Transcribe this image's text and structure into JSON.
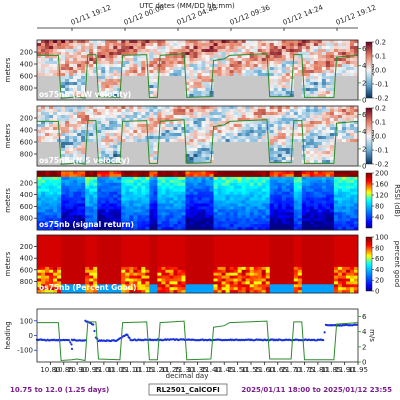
{
  "figure": {
    "top_title": "UTC dates (MM/DD hh:mm)",
    "top_ticks": [
      "01/11 19:12",
      "01/12 00:00",
      "01/12 04:48",
      "01/12 09:36",
      "01/12 14:24",
      "01/12 19:12"
    ],
    "x_ticks": [
      "10.80",
      "10.85",
      "10.90",
      "10.95",
      "11.00",
      "11.05",
      "11.10",
      "11.15",
      "11.20",
      "11.25",
      "11.30",
      "11.35",
      "11.40",
      "11.45",
      "11.50",
      "11.55",
      "11.60",
      "11.65",
      "11.70",
      "11.75",
      "11.80",
      "11.85",
      "11.90",
      "11.95"
    ],
    "x_label": "decimal day",
    "footer": {
      "left": "10.75 to 12.0 (1.25 days)",
      "center": "RL2501_CalCOFI",
      "right": "2025/01/11 18:00 to 2025/01/12 23:55"
    },
    "colors": {
      "footer_purple": "#7a1e8c",
      "speed_green": "#2d8a2d",
      "heading_blue": "#1a33d9",
      "no_data_gray": "#c8c8c8"
    }
  },
  "chart_data": [
    {
      "type": "heatmap",
      "label": "os75nb (E-W velocity)",
      "ylabel": "meters",
      "y_ticks": [
        "200",
        "400",
        "600",
        "800"
      ],
      "ylim": [
        1000,
        0
      ],
      "colorbar": {
        "ticks": [
          "0.2",
          "0.1",
          "0.0",
          "-0.1",
          "-0.2"
        ],
        "range": [
          -0.2,
          0.2
        ],
        "colormap": "RdBu_r"
      },
      "right_axis": {
        "label": "m/s",
        "ticks": [
          "6",
          "4",
          "2",
          "0"
        ],
        "range": [
          0,
          7
        ]
      },
      "overlay": "ship speed"
    },
    {
      "type": "heatmap",
      "label": "os75nb (N-S velocity)",
      "ylabel": "meters",
      "y_ticks": [
        "200",
        "400",
        "600",
        "800"
      ],
      "ylim": [
        1000,
        0
      ],
      "colorbar": {
        "ticks": [
          "0.2",
          "0.1",
          "0.0",
          "-0.1",
          "-0.2"
        ],
        "range": [
          -0.2,
          0.2
        ],
        "colormap": "RdBu_r"
      },
      "right_axis": {
        "label": "m/s",
        "ticks": [
          "6",
          "4",
          "2",
          "0"
        ],
        "range": [
          0,
          7
        ]
      },
      "overlay": "ship speed"
    },
    {
      "type": "heatmap",
      "label": "os75nb (signal return)",
      "ylabel": "meters",
      "y_ticks": [
        "200",
        "400",
        "600",
        "800"
      ],
      "ylim": [
        1000,
        0
      ],
      "colorbar": {
        "label": "RSSI (dB)",
        "ticks": [
          "200",
          "160",
          "120",
          "80",
          "40"
        ],
        "range": [
          0,
          200
        ],
        "colormap": "jet"
      }
    },
    {
      "type": "heatmap",
      "label": "os75nb (Percent Good)",
      "ylabel": "meters",
      "y_ticks": [
        "200",
        "400",
        "600",
        "800"
      ],
      "ylim": [
        1000,
        0
      ],
      "colorbar": {
        "label": "percent good",
        "ticks": [
          "100",
          "80",
          "60",
          "40",
          "20",
          "0"
        ],
        "range": [
          0,
          100
        ],
        "colormap": "jet"
      }
    },
    {
      "type": "line",
      "ylabel": "heading",
      "y_ticks": [
        "100",
        "0",
        "-100"
      ],
      "ylim": [
        -180,
        180
      ],
      "right_axis": {
        "label": "m/s",
        "ticks": [
          "6",
          "4",
          "2",
          "0"
        ],
        "range": [
          0,
          7
        ]
      },
      "series": [
        {
          "name": "heading",
          "marker": "dots",
          "x": [
            10.75,
            10.87,
            10.879,
            10.881,
            10.88,
            10.93,
            10.931,
            10.96,
            10.97,
            10.98,
            11.05,
            11.085,
            11.1,
            11.16,
            11.27,
            11.35,
            11.4,
            11.45,
            11.53,
            11.62,
            11.65,
            11.72,
            11.75,
            11.82,
            11.83,
            11.9,
            11.95
          ],
          "y": [
            -30,
            -33,
            -60,
            -90,
            -30,
            -35,
            100,
            75,
            -15,
            -35,
            -35,
            10,
            -30,
            -30,
            -28,
            -30,
            -30,
            -30,
            -30,
            -30,
            -30,
            -30,
            -30,
            -30,
            70,
            70,
            72
          ]
        },
        {
          "name": "speed",
          "axis": "right",
          "x": [
            10.75,
            10.83,
            10.84,
            10.88,
            10.9,
            10.93,
            10.94,
            10.97,
            10.98,
            11.06,
            11.07,
            11.16,
            11.17,
            11.2,
            11.21,
            11.3,
            11.31,
            11.4,
            11.41,
            11.45,
            11.47,
            11.61,
            11.62,
            11.7,
            11.71,
            11.74,
            11.75,
            11.86,
            11.87,
            11.95
          ],
          "y": [
            5.2,
            5.2,
            0.2,
            0.3,
            0.4,
            0.2,
            5.3,
            5.3,
            0.4,
            0.3,
            5.2,
            5.3,
            0.3,
            0.3,
            5.2,
            5.4,
            0.3,
            0.4,
            4.6,
            4.8,
            5.2,
            5.4,
            0.4,
            0.4,
            5.3,
            5.3,
            0.3,
            0.3,
            5.0,
            5.2
          ]
        }
      ]
    }
  ]
}
